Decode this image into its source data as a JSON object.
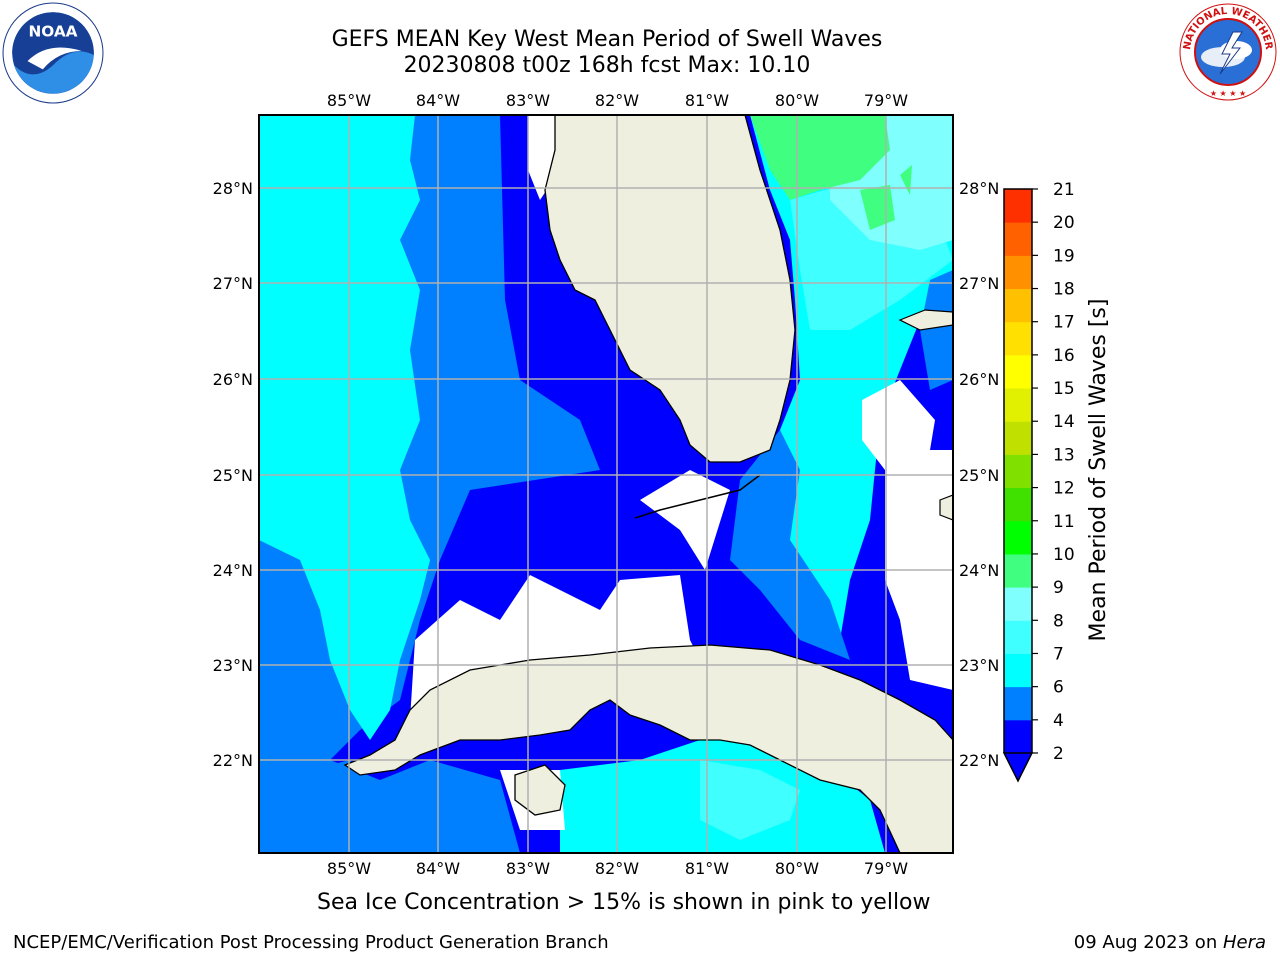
{
  "header": {
    "title_line1": "GEFS MEAN Key West Mean Period of Swell Waves",
    "title_line2": "20230808 t00z 168h fcst   Max: 10.10"
  },
  "logos": {
    "left": {
      "name": "noaa-logo",
      "text": "NOAA"
    },
    "right": {
      "name": "nws-logo",
      "text": "NATIONAL WEATHER SERVICE"
    }
  },
  "map": {
    "lon_labels": [
      "85°W",
      "84°W",
      "83°W",
      "82°W",
      "81°W",
      "80°W",
      "79°W"
    ],
    "lat_labels": [
      "28°N",
      "27°N",
      "26°N",
      "25°N",
      "24°N",
      "23°N",
      "22°N"
    ],
    "extent": {
      "lon_min": -86.0,
      "lon_max": -78.3,
      "lat_min": 21.0,
      "lat_max": 28.8
    },
    "colors": {
      "ocean_dark": "#0000ff",
      "ocean_mid": "#0080ff",
      "ocean_light": "#00ffff",
      "ocean_pale": "#80ffff",
      "land": "#efefdf",
      "green": "#40ff80",
      "grid": "#b0b0b0"
    }
  },
  "colorbar": {
    "label": "Mean Period of Swell Waves [s]",
    "ticks": [
      "2",
      "4",
      "6",
      "7",
      "8",
      "9",
      "10",
      "11",
      "12",
      "13",
      "14",
      "15",
      "16",
      "17",
      "18",
      "19",
      "20",
      "21"
    ],
    "colors": [
      "#0000ff",
      "#0080ff",
      "#00ffff",
      "#40ffff",
      "#80ffff",
      "#40ff80",
      "#00ff00",
      "#40e000",
      "#80e000",
      "#c0e000",
      "#e0f000",
      "#ffff00",
      "#ffe000",
      "#ffc000",
      "#ff9000",
      "#ff6000",
      "#ff3000",
      "#ff0000"
    ]
  },
  "footer": {
    "note": "Sea Ice Concentration > 15% is shown in pink to yellow",
    "left": "NCEP/EMC/Verification Post Processing Product Generation Branch",
    "right_prefix": "09 Aug 2023 on ",
    "right_machine": "Hera"
  }
}
